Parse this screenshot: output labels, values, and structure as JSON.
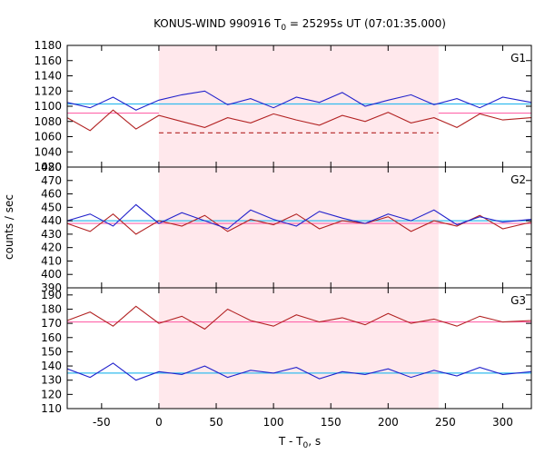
{
  "chart_data": {
    "type": "line",
    "title": {
      "prefix": "KONUS-WIND 990916 T",
      "sub": "0",
      "suffix": " = 25295s UT (07:01:35.000)"
    },
    "xlabel": {
      "prefix": "T - T",
      "sub": "0",
      "suffix": ", s"
    },
    "ylabel": "counts / sec",
    "xlim": [
      -80,
      325
    ],
    "xticks": [
      -50,
      0,
      50,
      100,
      150,
      200,
      250,
      300
    ],
    "highlight_interval": [
      0,
      244
    ],
    "colors": {
      "dark_series": "#b22222",
      "light_series": "#2222cc",
      "dark_level": "#ff66aa",
      "light_level": "#33bbee",
      "highlight": "#ffe8ec"
    },
    "panels": [
      {
        "label": "G1",
        "ylim": [
          1020,
          1180
        ],
        "yticks": [
          1020,
          1040,
          1060,
          1080,
          1100,
          1120,
          1140,
          1160,
          1180
        ],
        "series": [
          {
            "style": "dark",
            "x": [
              -80,
              -60,
              -40,
              -20,
              0,
              20,
              40,
              60,
              80,
              100,
              120,
              140,
              160,
              180,
              200,
              220,
              240,
              260,
              280,
              300,
              325
            ],
            "values": [
              1085,
              1068,
              1095,
              1070,
              1088,
              1080,
              1072,
              1085,
              1078,
              1090,
              1082,
              1075,
              1088,
              1080,
              1092,
              1078,
              1085,
              1072,
              1090,
              1082,
              1085
            ]
          },
          {
            "style": "light",
            "x": [
              -80,
              -60,
              -40,
              -20,
              0,
              20,
              40,
              60,
              80,
              100,
              120,
              140,
              160,
              180,
              200,
              220,
              240,
              260,
              280,
              300,
              325
            ],
            "values": [
              1105,
              1098,
              1112,
              1095,
              1108,
              1115,
              1120,
              1102,
              1110,
              1098,
              1112,
              1105,
              1118,
              1100,
              1108,
              1115,
              1102,
              1110,
              1098,
              1112,
              1105
            ]
          }
        ],
        "levels": [
          {
            "style": "dark",
            "kind": "solid",
            "value": 1091,
            "range": [
              -80,
              0
            ]
          },
          {
            "style": "dark",
            "kind": "dashed",
            "value": 1065,
            "range": [
              0,
              244
            ]
          },
          {
            "style": "dark",
            "kind": "solid",
            "value": 1091,
            "range": [
              244,
              325
            ]
          },
          {
            "style": "light",
            "kind": "solid",
            "value": 1103,
            "range": [
              -80,
              325
            ]
          }
        ]
      },
      {
        "label": "G2",
        "ylim": [
          390,
          480
        ],
        "yticks": [
          390,
          400,
          410,
          420,
          430,
          440,
          450,
          460,
          470,
          480
        ],
        "series": [
          {
            "style": "dark",
            "x": [
              -80,
              -60,
              -40,
              -20,
              0,
              20,
              40,
              60,
              80,
              100,
              120,
              140,
              160,
              180,
              200,
              220,
              240,
              260,
              280,
              300,
              325
            ],
            "values": [
              438,
              432,
              445,
              430,
              440,
              436,
              444,
              432,
              441,
              437,
              445,
              434,
              440,
              438,
              443,
              432,
              440,
              436,
              444,
              434,
              439
            ]
          },
          {
            "style": "light",
            "x": [
              -80,
              -60,
              -40,
              -20,
              0,
              20,
              40,
              60,
              80,
              100,
              120,
              140,
              160,
              180,
              200,
              220,
              240,
              260,
              280,
              300,
              325
            ],
            "values": [
              440,
              445,
              436,
              452,
              438,
              446,
              440,
              434,
              448,
              441,
              436,
              447,
              442,
              438,
              445,
              440,
              448,
              437,
              443,
              439,
              441
            ]
          }
        ],
        "levels": [
          {
            "style": "dark",
            "kind": "solid",
            "value": 438,
            "range": [
              -80,
              325
            ]
          },
          {
            "style": "light",
            "kind": "solid",
            "value": 440,
            "range": [
              -80,
              325
            ]
          }
        ]
      },
      {
        "label": "G3",
        "ylim": [
          110,
          195
        ],
        "yticks": [
          110,
          120,
          130,
          140,
          150,
          160,
          170,
          180,
          190
        ],
        "series": [
          {
            "style": "dark",
            "x": [
              -80,
              -60,
              -40,
              -20,
              0,
              20,
              40,
              60,
              80,
              100,
              120,
              140,
              160,
              180,
              200,
              220,
              240,
              260,
              280,
              300,
              325
            ],
            "values": [
              172,
              178,
              168,
              182,
              170,
              175,
              166,
              180,
              172,
              168,
              176,
              171,
              174,
              169,
              177,
              170,
              173,
              168,
              175,
              171,
              172
            ]
          },
          {
            "style": "light",
            "x": [
              -80,
              -60,
              -40,
              -20,
              0,
              20,
              40,
              60,
              80,
              100,
              120,
              140,
              160,
              180,
              200,
              220,
              240,
              260,
              280,
              300,
              325
            ],
            "values": [
              138,
              132,
              142,
              130,
              136,
              134,
              140,
              132,
              137,
              135,
              139,
              131,
              136,
              134,
              138,
              132,
              137,
              133,
              139,
              134,
              136
            ]
          }
        ],
        "levels": [
          {
            "style": "dark",
            "kind": "solid",
            "value": 171,
            "range": [
              -80,
              325
            ]
          },
          {
            "style": "light",
            "kind": "solid",
            "value": 135,
            "range": [
              -80,
              325
            ]
          }
        ]
      }
    ]
  }
}
